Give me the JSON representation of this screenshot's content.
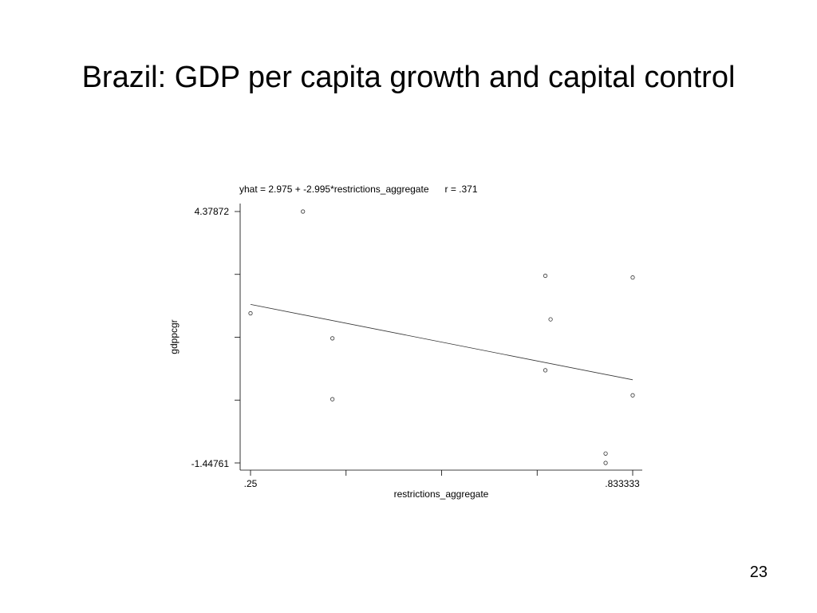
{
  "slide": {
    "title": "Brazil: GDP per capita growth and capital control",
    "page_number": "23"
  },
  "chart_data": {
    "type": "scatter",
    "title": "yhat = 2.975 + -2.995*restrictions_aggregate      r = .371",
    "xlabel": "restrictions_aggregate",
    "ylabel": "gdppcgr",
    "xlim": [
      0.25,
      0.833333
    ],
    "ylim": [
      -1.44761,
      4.37872
    ],
    "x_tick_labels": [
      ".25",
      ".833333"
    ],
    "y_tick_labels": [
      "4.37872",
      "-1.44761"
    ],
    "grid": false,
    "series": [
      {
        "points": [
          {
            "x": 0.25,
            "y": 2.02
          },
          {
            "x": 0.33,
            "y": 4.37872
          },
          {
            "x": 0.375,
            "y": 1.44
          },
          {
            "x": 0.375,
            "y": 0.03
          },
          {
            "x": 0.7,
            "y": 2.89
          },
          {
            "x": 0.708,
            "y": 1.88
          },
          {
            "x": 0.7,
            "y": 0.7
          },
          {
            "x": 0.792,
            "y": -1.23
          },
          {
            "x": 0.792,
            "y": -1.44761
          },
          {
            "x": 0.833333,
            "y": 2.85
          },
          {
            "x": 0.833333,
            "y": 0.12
          }
        ]
      }
    ],
    "fit_line": {
      "intercept": 2.975,
      "slope": -2.995
    }
  }
}
